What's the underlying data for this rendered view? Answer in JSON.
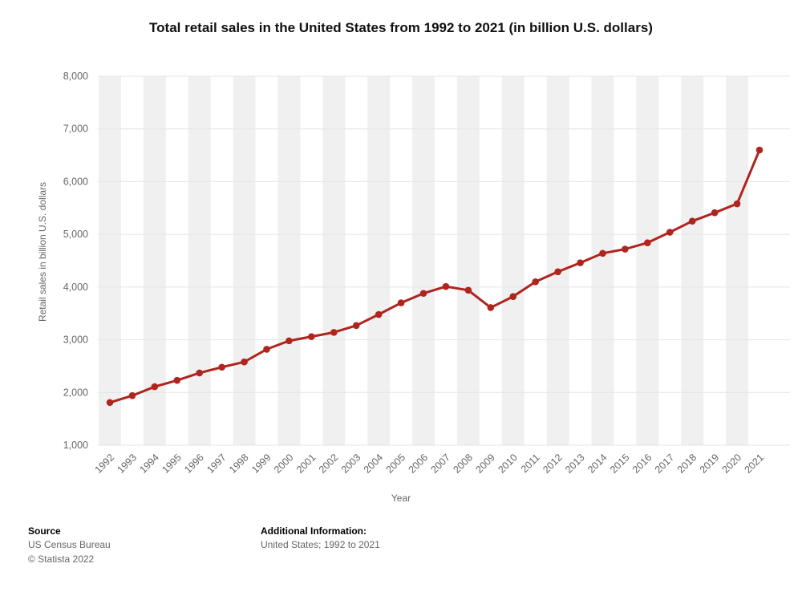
{
  "chart_data": {
    "type": "line",
    "title": "Total retail sales in the United States from 1992 to 2021 (in billion U.S. dollars)",
    "xlabel": "Year",
    "ylabel": "Retail sales in billion U.S. dollars",
    "x": [
      1992,
      1993,
      1994,
      1995,
      1996,
      1997,
      1998,
      1999,
      2000,
      2001,
      2002,
      2003,
      2004,
      2005,
      2006,
      2007,
      2008,
      2009,
      2010,
      2011,
      2012,
      2013,
      2014,
      2015,
      2016,
      2017,
      2018,
      2019,
      2020,
      2021
    ],
    "values": [
      1810,
      1940,
      2110,
      2230,
      2370,
      2480,
      2580,
      2820,
      2980,
      3060,
      3140,
      3270,
      3480,
      3700,
      3880,
      4010,
      3940,
      3610,
      3820,
      4100,
      4290,
      4460,
      4640,
      4720,
      4840,
      5040,
      5250,
      5410,
      5580,
      6600
    ],
    "ylim": [
      1000,
      8000
    ],
    "y_ticks": [
      1000,
      2000,
      3000,
      4000,
      5000,
      6000,
      7000,
      8000
    ],
    "grid": true,
    "legend": "none",
    "line_color": "#b0241e",
    "band_color": "#f0f0f0",
    "gridline_color": "#e4e4e4",
    "tick_label_color": "#666666"
  },
  "footer": {
    "source_label": "Source",
    "source_name": "US Census Bureau",
    "copyright": "© Statista 2022",
    "additional_info_label": "Additional Information:",
    "additional_info": "United States; 1992 to 2021"
  }
}
